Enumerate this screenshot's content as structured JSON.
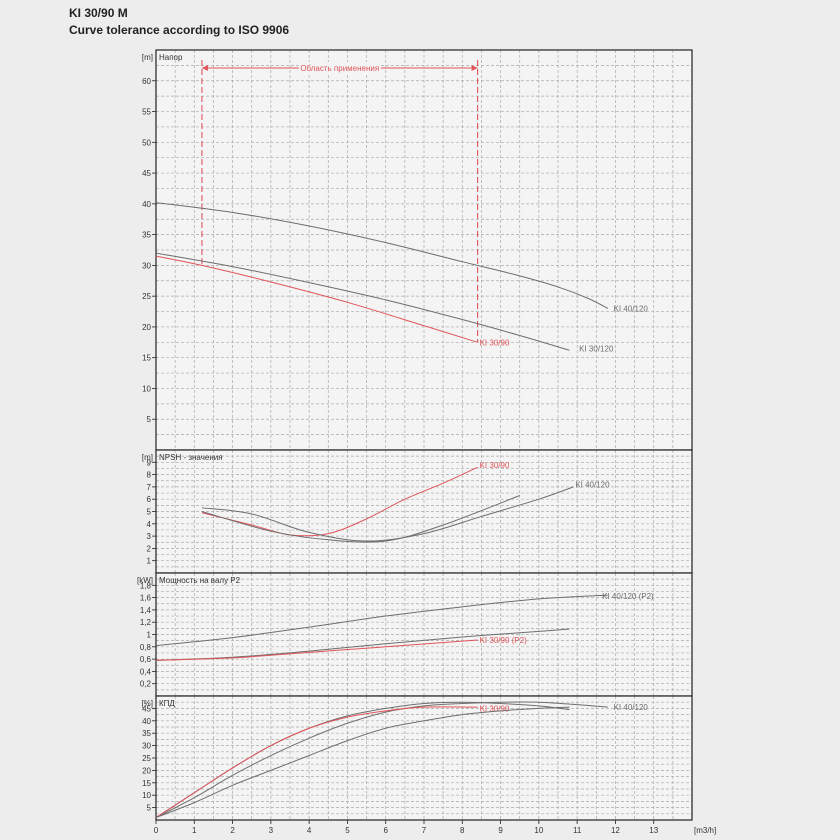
{
  "header": {
    "title": "KI 30/90 M",
    "subtitle": "Curve tolerance according to ISO 9906"
  },
  "colors": {
    "grey": "#6e6e6e",
    "red": "#e0555a",
    "grid": "#aaaaaa",
    "frame": "#222222"
  },
  "chart_data": [
    {
      "type": "line",
      "panel": "head",
      "title": "Напор",
      "unit": "[m]",
      "xlim": [
        0,
        14
      ],
      "ylim": [
        0,
        65
      ],
      "yticks": [
        5,
        10,
        15,
        20,
        25,
        30,
        35,
        40,
        45,
        50,
        55,
        60
      ],
      "range_label": "Область применения",
      "range_x": [
        1.2,
        8.4
      ],
      "series": [
        {
          "name": "KI 40/120",
          "color": "grey",
          "label_at": [
            11.9,
            23
          ],
          "x": [
            0,
            2,
            4,
            6,
            8,
            9.5,
            10.5,
            11.3,
            11.8
          ],
          "y": [
            40.2,
            38.6,
            36.4,
            33.7,
            30.6,
            28.3,
            26.5,
            24.6,
            23
          ]
        },
        {
          "name": "KI 30/120",
          "color": "grey",
          "label_at": [
            11,
            16.5
          ],
          "x": [
            0,
            2,
            4,
            6,
            8,
            9.5,
            10.8
          ],
          "y": [
            32,
            29.8,
            27.2,
            24.4,
            21.2,
            18.6,
            16.2
          ]
        },
        {
          "name": "KI 30/90",
          "color": "red",
          "label_at": [
            8.4,
            17.5
          ],
          "x": [
            0,
            1.2,
            3,
            5,
            7,
            8.4
          ],
          "y": [
            31.5,
            30,
            27.3,
            24,
            20.2,
            17.5
          ]
        }
      ]
    },
    {
      "type": "line",
      "panel": "npsh",
      "title": "NPSH - значения",
      "unit": "[m]",
      "xlim": [
        0,
        14
      ],
      "ylim": [
        0,
        10
      ],
      "yticks": [
        1,
        2,
        3,
        4,
        5,
        6,
        7,
        8,
        9
      ],
      "series": [
        {
          "name": "KI 30/90",
          "color": "red",
          "label_at": [
            8.4,
            8.8
          ],
          "x": [
            1.2,
            2.5,
            3.5,
            4.5,
            5.5,
            6.5,
            7.5,
            8.4
          ],
          "y": [
            4.9,
            3.9,
            3.1,
            3.2,
            4.4,
            6.0,
            7.3,
            8.6
          ]
        },
        {
          "name": "KI 40/120",
          "color": "grey",
          "label_at": [
            10.9,
            7.2
          ],
          "x": [
            1.2,
            2.5,
            4,
            5.5,
            7,
            8.5,
            10,
            10.9
          ],
          "y": [
            5.3,
            4.8,
            3.3,
            2.6,
            3.2,
            4.6,
            6.0,
            7.0
          ]
        },
        {
          "name": "",
          "color": "grey",
          "x": [
            1.2,
            3,
            4.5,
            6,
            7.5,
            9.5
          ],
          "y": [
            5.0,
            3.4,
            2.7,
            2.6,
            3.9,
            6.3
          ]
        }
      ]
    },
    {
      "type": "line",
      "panel": "power",
      "title": "Мощность на валу P2",
      "unit": "[kW]",
      "xlim": [
        0,
        14
      ],
      "ylim": [
        0,
        2.0
      ],
      "yticks": [
        0.2,
        0.4,
        0.6,
        0.8,
        1,
        1.2,
        1.4,
        1.6,
        1.8
      ],
      "ytick_labels": [
        "0,2",
        "0,4",
        "0,6",
        "0,8",
        "1",
        "1,2",
        "1,4",
        "1,6",
        "1,8"
      ],
      "series": [
        {
          "name": "KI 40/120 (P2)",
          "color": "grey",
          "label_at": [
            11.6,
            1.63
          ],
          "x": [
            0,
            2,
            4,
            6,
            8,
            10,
            11.8
          ],
          "y": [
            0.82,
            0.95,
            1.12,
            1.3,
            1.45,
            1.58,
            1.64
          ]
        },
        {
          "name": "",
          "color": "grey",
          "x": [
            0,
            2,
            4,
            6,
            8,
            10,
            10.8
          ],
          "y": [
            0.58,
            0.63,
            0.73,
            0.85,
            0.96,
            1.05,
            1.09
          ]
        },
        {
          "name": "KI 30/90 (P2)",
          "color": "red",
          "label_at": [
            8.4,
            0.91
          ],
          "x": [
            0,
            2,
            4,
            6,
            8.4
          ],
          "y": [
            0.58,
            0.62,
            0.71,
            0.8,
            0.91
          ]
        }
      ]
    },
    {
      "type": "line",
      "panel": "efficiency",
      "title": "КПД",
      "unit": "[%]",
      "xlim": [
        0,
        14
      ],
      "ylim": [
        0,
        50
      ],
      "yticks": [
        5,
        10,
        15,
        20,
        25,
        30,
        35,
        40,
        45
      ],
      "xticks": [
        0,
        1,
        2,
        3,
        4,
        5,
        6,
        7,
        8,
        9,
        10,
        11,
        12,
        13
      ],
      "xunit": "[m3/h]",
      "series": [
        {
          "name": "KI 40/120",
          "color": "grey",
          "label_at": [
            11.9,
            45.5
          ],
          "x": [
            0,
            1,
            2,
            3,
            4,
            5,
            6,
            7,
            8,
            9,
            10,
            11,
            11.8
          ],
          "y": [
            1,
            9,
            18,
            26,
            33,
            39,
            43.5,
            46,
            47,
            47.5,
            47.5,
            46.5,
            45.5
          ]
        },
        {
          "name": "",
          "color": "grey",
          "x": [
            0,
            1,
            2,
            3,
            4,
            5,
            6,
            7,
            8,
            9,
            10,
            10.8
          ],
          "y": [
            1,
            11,
            21,
            30,
            37,
            42,
            45,
            47,
            47.5,
            47,
            46,
            44.5
          ]
        },
        {
          "name": "KI 30/90",
          "color": "red",
          "label_at": [
            8.4,
            45
          ],
          "x": [
            0,
            1,
            2,
            3,
            4,
            5,
            6,
            7,
            8.4
          ],
          "y": [
            1,
            11,
            21,
            30,
            37,
            41.5,
            44,
            45.5,
            45.5
          ]
        },
        {
          "name": "",
          "color": "grey",
          "x": [
            0,
            1,
            2,
            3,
            4,
            5,
            6,
            7,
            8,
            9,
            10,
            10.8
          ],
          "y": [
            1,
            7,
            14,
            20,
            26,
            32,
            37,
            40,
            42.5,
            44,
            45,
            45.5
          ]
        }
      ]
    }
  ]
}
